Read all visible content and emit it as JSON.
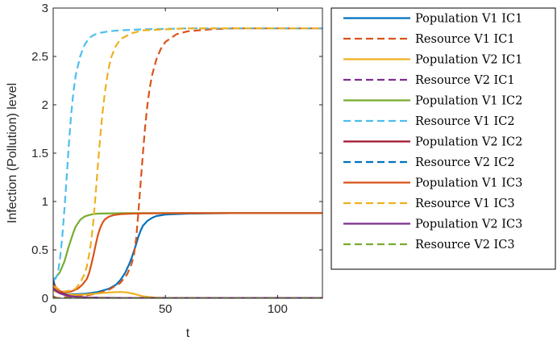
{
  "chart_data": {
    "type": "line",
    "title": "",
    "xlabel": "t",
    "ylabel": "Infection (Pollution) level",
    "xlim": [
      0,
      120
    ],
    "ylim": [
      0,
      3
    ],
    "xticks": [
      0,
      50,
      100
    ],
    "yticks": [
      0,
      0.5,
      1,
      1.5,
      2,
      2.5,
      3
    ],
    "ytick_labels": [
      "0",
      "0.5",
      "1",
      "1.5",
      "2",
      "2.5",
      "3"
    ],
    "grid": false,
    "legend_position": "outside-right",
    "series": [
      {
        "name": "Population V1 IC1",
        "color": "#0072BD",
        "style": "solid",
        "x": [
          0,
          1,
          3,
          6,
          10,
          15,
          20,
          25,
          28,
          30,
          32,
          34,
          35,
          36,
          37,
          38,
          39,
          40,
          42,
          44,
          46,
          50,
          60,
          80,
          100,
          120
        ],
        "y": [
          0.2,
          0.1,
          0.055,
          0.042,
          0.042,
          0.048,
          0.065,
          0.1,
          0.14,
          0.19,
          0.26,
          0.36,
          0.42,
          0.49,
          0.56,
          0.64,
          0.7,
          0.75,
          0.8,
          0.83,
          0.85,
          0.865,
          0.875,
          0.88,
          0.88,
          0.88
        ]
      },
      {
        "name": "Resource V1 IC1",
        "color": "#D95319",
        "style": "dashed",
        "x": [
          0,
          2,
          5,
          10,
          15,
          20,
          25,
          30,
          33,
          35,
          36,
          37,
          38,
          39,
          40,
          41,
          42,
          43,
          44,
          46,
          48,
          50,
          55,
          60,
          70,
          80,
          100,
          120
        ],
        "y": [
          0.02,
          0.0,
          0.01,
          0.02,
          0.03,
          0.05,
          0.09,
          0.16,
          0.25,
          0.36,
          0.45,
          0.62,
          0.9,
          1.2,
          1.5,
          1.78,
          2.0,
          2.17,
          2.3,
          2.47,
          2.58,
          2.65,
          2.73,
          2.76,
          2.78,
          2.79,
          2.79,
          2.79
        ]
      },
      {
        "name": "Population V2 IC1",
        "color": "#EDB120",
        "style": "solid",
        "x": [
          0,
          2,
          5,
          10,
          15,
          20,
          25,
          30,
          33,
          36,
          40,
          45,
          50,
          60,
          80,
          100,
          120
        ],
        "y": [
          0.08,
          0.06,
          0.04,
          0.035,
          0.04,
          0.05,
          0.06,
          0.065,
          0.06,
          0.045,
          0.02,
          0.008,
          0.003,
          0.002,
          0.002,
          0.002,
          0.002
        ]
      },
      {
        "name": "Resource V2 IC1",
        "color": "#7E2F8E",
        "style": "dashed",
        "x": [
          0,
          5,
          10,
          20,
          30,
          40,
          50,
          60,
          80,
          100,
          120
        ],
        "y": [
          0.0,
          0.0,
          0.0,
          0.0,
          0.0,
          0.0,
          0.0,
          0.0,
          0.0,
          0.0,
          0.0
        ]
      },
      {
        "name": "Population V1 IC2",
        "color": "#77AC30",
        "style": "solid",
        "x": [
          0,
          1,
          3,
          5,
          7,
          9,
          10,
          12,
          14,
          16,
          18,
          20,
          25,
          30,
          40,
          60,
          80,
          100,
          120
        ],
        "y": [
          0.2,
          0.21,
          0.27,
          0.38,
          0.54,
          0.68,
          0.74,
          0.81,
          0.845,
          0.86,
          0.87,
          0.875,
          0.877,
          0.879,
          0.88,
          0.88,
          0.88,
          0.88,
          0.88
        ]
      },
      {
        "name": "Resource V1 IC2",
        "color": "#4DBEEE",
        "style": "dashed",
        "x": [
          0,
          1,
          2,
          3,
          4,
          5,
          6,
          7,
          8,
          9,
          10,
          12,
          14,
          16,
          18,
          20,
          25,
          30,
          40,
          50,
          60,
          80,
          100,
          120
        ],
        "y": [
          0.2,
          0.2,
          0.25,
          0.4,
          0.62,
          0.92,
          1.25,
          1.6,
          1.9,
          2.13,
          2.3,
          2.5,
          2.62,
          2.69,
          2.72,
          2.74,
          2.76,
          2.77,
          2.78,
          2.785,
          2.79,
          2.79,
          2.79,
          2.79
        ]
      },
      {
        "name": "Population V2 IC2",
        "color": "#A2142F",
        "style": "solid",
        "x": [
          0,
          1,
          3,
          5,
          8,
          12,
          16,
          20,
          30,
          50,
          80,
          100,
          120
        ],
        "y": [
          0.15,
          0.12,
          0.07,
          0.04,
          0.02,
          0.012,
          0.008,
          0.005,
          0.003,
          0.002,
          0.002,
          0.002,
          0.002
        ]
      },
      {
        "name": "Resource V2 IC2",
        "color": "#0072BD",
        "style": "dashed",
        "x": [
          0,
          5,
          10,
          20,
          30,
          40,
          50,
          60,
          80,
          100,
          120
        ],
        "y": [
          0.0,
          0.0,
          0.0,
          0.0,
          0.0,
          0.0,
          0.0,
          0.0,
          0.0,
          0.0,
          0.0
        ]
      },
      {
        "name": "Population V1 IC3",
        "color": "#D95319",
        "style": "solid",
        "x": [
          0,
          2,
          5,
          8,
          11,
          13,
          15,
          16,
          17,
          18,
          19,
          20,
          21,
          22,
          23,
          25,
          27,
          30,
          35,
          40,
          60,
          80,
          100,
          120
        ],
        "y": [
          0.13,
          0.08,
          0.06,
          0.07,
          0.1,
          0.14,
          0.2,
          0.26,
          0.35,
          0.45,
          0.56,
          0.66,
          0.73,
          0.78,
          0.815,
          0.845,
          0.86,
          0.87,
          0.875,
          0.877,
          0.88,
          0.88,
          0.88,
          0.88
        ]
      },
      {
        "name": "Resource V1 IC3",
        "color": "#EDB120",
        "style": "dashed",
        "x": [
          0,
          2,
          5,
          8,
          10,
          12,
          14,
          15,
          16,
          17,
          18,
          19,
          20,
          21,
          22,
          23,
          24,
          25,
          26,
          28,
          30,
          35,
          40,
          50,
          60,
          80,
          100,
          120
        ],
        "y": [
          0.13,
          0.1,
          0.07,
          0.08,
          0.1,
          0.16,
          0.25,
          0.33,
          0.45,
          0.6,
          0.82,
          1.1,
          1.4,
          1.68,
          1.92,
          2.12,
          2.28,
          2.41,
          2.5,
          2.61,
          2.68,
          2.74,
          2.77,
          2.78,
          2.79,
          2.79,
          2.79,
          2.79
        ]
      },
      {
        "name": "Population V2 IC3",
        "color": "#7E2F8E",
        "style": "solid",
        "x": [
          0,
          1,
          3,
          5,
          8,
          12,
          16,
          20,
          30,
          50,
          80,
          100,
          120
        ],
        "y": [
          0.1,
          0.08,
          0.05,
          0.035,
          0.02,
          0.012,
          0.008,
          0.005,
          0.003,
          0.002,
          0.002,
          0.002,
          0.002
        ]
      },
      {
        "name": "Resource V2 IC3",
        "color": "#77AC30",
        "style": "dashed",
        "x": [
          0,
          5,
          10,
          20,
          30,
          40,
          50,
          60,
          80,
          100,
          120
        ],
        "y": [
          0.0,
          0.0,
          0.0,
          0.0,
          0.0,
          0.0,
          0.0,
          0.0,
          0.0,
          0.0,
          0.0
        ]
      }
    ]
  }
}
